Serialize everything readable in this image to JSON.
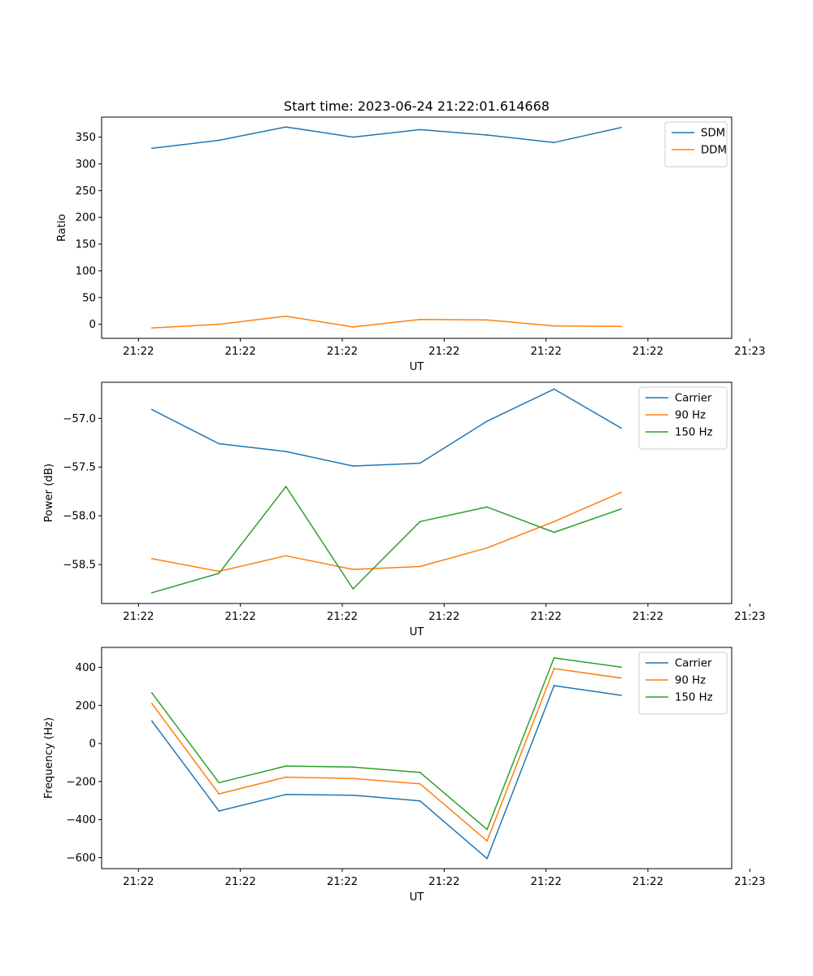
{
  "figure": {
    "title": "Start time: 2023-06-24 21:22:01.614668"
  },
  "chart_data": [
    {
      "type": "line",
      "xlabel": "UT",
      "ylabel": "Ratio",
      "x": [
        0,
        1,
        2,
        3,
        4,
        5,
        6,
        7
      ],
      "xlim": [
        -0.75,
        8.65
      ],
      "x_ticks": [
        {
          "x": -0.2,
          "label": "21:22"
        },
        {
          "x": 1.32,
          "label": "21:22"
        },
        {
          "x": 2.84,
          "label": "21:22"
        },
        {
          "x": 4.36,
          "label": "21:22"
        },
        {
          "x": 5.88,
          "label": "21:22"
        },
        {
          "x": 7.4,
          "label": "21:22"
        },
        {
          "x": 8.92,
          "label": "21:23"
        }
      ],
      "ylim": [
        -26.3,
        387.4
      ],
      "y_ticks": [
        0,
        50,
        100,
        150,
        200,
        250,
        300,
        350
      ],
      "y_tick_labels": [
        "0",
        "50",
        "100",
        "150",
        "200",
        "250",
        "300",
        "350"
      ],
      "series": [
        {
          "name": "SDM",
          "color": "#1f77b4",
          "values": [
            329,
            344,
            369,
            350,
            364,
            354,
            340,
            368
          ]
        },
        {
          "name": "DDM",
          "color": "#ff7f0e",
          "values": [
            -7,
            0,
            15,
            -5,
            9,
            8,
            -3,
            -4
          ]
        }
      ],
      "legend": "top-right"
    },
    {
      "type": "line",
      "xlabel": "UT",
      "ylabel": "Power (dB)",
      "x": [
        0,
        1,
        2,
        3,
        4,
        5,
        6,
        7
      ],
      "xlim": [
        -0.75,
        8.65
      ],
      "x_ticks": [
        {
          "x": -0.2,
          "label": "21:22"
        },
        {
          "x": 1.32,
          "label": "21:22"
        },
        {
          "x": 2.84,
          "label": "21:22"
        },
        {
          "x": 4.36,
          "label": "21:22"
        },
        {
          "x": 5.88,
          "label": "21:22"
        },
        {
          "x": 7.4,
          "label": "21:22"
        },
        {
          "x": 8.92,
          "label": "21:23"
        }
      ],
      "ylim": [
        -58.9,
        -56.63
      ],
      "y_ticks": [
        -58.5,
        -58.0,
        -57.5,
        -57.0
      ],
      "y_tick_labels": [
        "−58.5",
        "−58.0",
        "−57.5",
        "−57.0"
      ],
      "series": [
        {
          "name": "Carrier",
          "color": "#1f77b4",
          "values": [
            -56.91,
            -57.26,
            -57.34,
            -57.49,
            -57.46,
            -57.03,
            -56.7,
            -57.1
          ]
        },
        {
          "name": "90 Hz",
          "color": "#ff7f0e",
          "values": [
            -58.44,
            -58.57,
            -58.41,
            -58.55,
            -58.52,
            -58.33,
            -58.06,
            -57.76
          ]
        },
        {
          "name": "150 Hz",
          "color": "#2ca02c",
          "values": [
            -58.79,
            -58.59,
            -57.7,
            -58.75,
            -58.06,
            -57.91,
            -58.17,
            -57.93
          ]
        }
      ],
      "legend": "top-right"
    },
    {
      "type": "line",
      "xlabel": "UT",
      "ylabel": "Frequency (Hz)",
      "x": [
        0,
        1,
        2,
        3,
        4,
        5,
        6,
        7
      ],
      "xlim": [
        -0.75,
        8.65
      ],
      "x_ticks": [
        {
          "x": -0.2,
          "label": "21:22"
        },
        {
          "x": 1.32,
          "label": "21:22"
        },
        {
          "x": 2.84,
          "label": "21:22"
        },
        {
          "x": 4.36,
          "label": "21:22"
        },
        {
          "x": 5.88,
          "label": "21:22"
        },
        {
          "x": 7.4,
          "label": "21:22"
        },
        {
          "x": 8.92,
          "label": "21:23"
        }
      ],
      "ylim": [
        -658,
        505
      ],
      "y_ticks": [
        -600,
        -400,
        -200,
        0,
        200,
        400
      ],
      "y_tick_labels": [
        "−600",
        "−400",
        "−200",
        "0",
        "200",
        "400"
      ],
      "series": [
        {
          "name": "Carrier",
          "color": "#1f77b4",
          "values": [
            118,
            -355,
            -268,
            -272,
            -302,
            -605,
            304,
            253
          ]
        },
        {
          "name": "90 Hz",
          "color": "#ff7f0e",
          "values": [
            210,
            -265,
            -177,
            -184,
            -212,
            -512,
            394,
            344
          ]
        },
        {
          "name": "150 Hz",
          "color": "#2ca02c",
          "values": [
            266,
            -206,
            -119,
            -124,
            -152,
            -452,
            450,
            401
          ]
        }
      ],
      "legend": "top-right"
    }
  ]
}
